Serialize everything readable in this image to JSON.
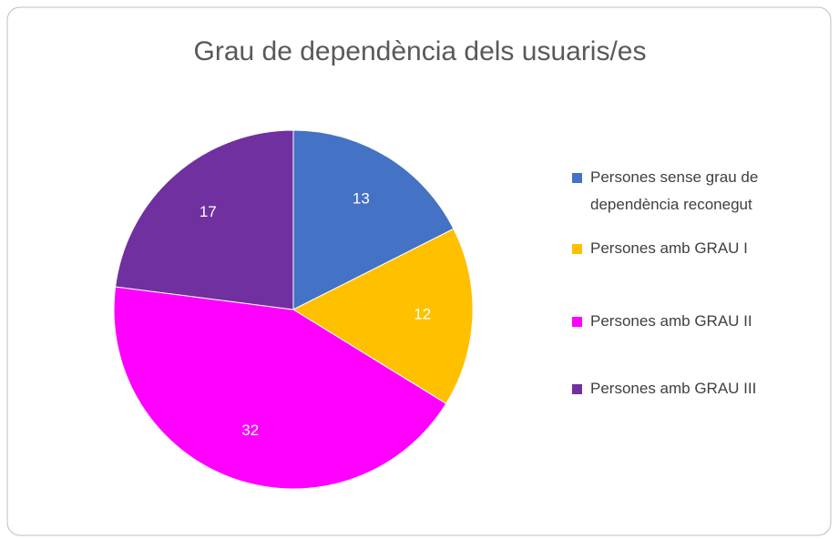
{
  "chart_data": {
    "type": "pie",
    "title": "Grau de dependència dels usuaris/es",
    "categories": [
      "Persones sense grau de dependència reconegut",
      "Persones amb GRAU I",
      "Persones amb GRAU II",
      "Persones amb GRAU III"
    ],
    "values": [
      13,
      12,
      32,
      17
    ],
    "colors": [
      "#4472c4",
      "#ffc000",
      "#ff00ff",
      "#7030a0"
    ],
    "legend": "right"
  }
}
